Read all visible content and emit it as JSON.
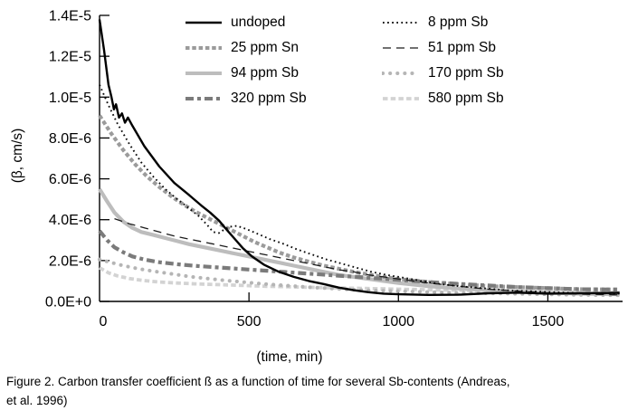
{
  "figure": {
    "caption_line1": "Figure 2. Carbon transfer coefficient ß as a function of time for several Sb-contents (Andreas,",
    "caption_line2": "et al. 1996)"
  },
  "chart_data": {
    "type": "line",
    "title": "",
    "xlabel": "(time, min)",
    "ylabel": "(β, cm/s)",
    "xlim": [
      0,
      1750
    ],
    "ylim": [
      0,
      1.4e-05
    ],
    "grid": false,
    "legend_position": "top-inside-two-columns",
    "points_unit": "1e-6 cm/s",
    "x_ticks": [
      {
        "v": 0,
        "label": "0"
      },
      {
        "v": 500,
        "label": "500"
      },
      {
        "v": 1000,
        "label": "1000"
      },
      {
        "v": 1500,
        "label": "1500"
      }
    ],
    "y_ticks": [
      {
        "v": 0,
        "label": "0.0E+0"
      },
      {
        "v": 2,
        "label": "2.0E-6"
      },
      {
        "v": 4,
        "label": "4.0E-6"
      },
      {
        "v": 6,
        "label": "6.0E-6"
      },
      {
        "v": 8,
        "label": "8.0E-6"
      },
      {
        "v": 10,
        "label": "1.0E-5"
      },
      {
        "v": 12,
        "label": "1.2E-5"
      },
      {
        "v": 14,
        "label": "1.4E-5"
      }
    ],
    "series": [
      {
        "name": "undoped",
        "slug": "undoped",
        "color": "#000000",
        "width": 2.4,
        "dash": "",
        "cap": "",
        "z": 8,
        "points": [
          [
            0,
            13.8
          ],
          [
            15,
            12.3
          ],
          [
            30,
            10.6
          ],
          [
            40,
            10.0
          ],
          [
            48,
            9.4
          ],
          [
            55,
            9.65
          ],
          [
            65,
            9.0
          ],
          [
            75,
            9.2
          ],
          [
            85,
            8.75
          ],
          [
            95,
            9.0
          ],
          [
            110,
            8.6
          ],
          [
            150,
            7.6
          ],
          [
            200,
            6.6
          ],
          [
            250,
            5.8
          ],
          [
            300,
            5.2
          ],
          [
            340,
            4.7
          ],
          [
            370,
            4.35
          ],
          [
            400,
            3.95
          ],
          [
            420,
            3.6
          ],
          [
            450,
            3.1
          ],
          [
            480,
            2.6
          ],
          [
            510,
            2.2
          ],
          [
            550,
            1.8
          ],
          [
            600,
            1.45
          ],
          [
            650,
            1.2
          ],
          [
            700,
            1.0
          ],
          [
            750,
            0.85
          ],
          [
            800,
            0.68
          ],
          [
            850,
            0.55
          ],
          [
            900,
            0.45
          ],
          [
            950,
            0.38
          ],
          [
            1000,
            0.35
          ],
          [
            1100,
            0.32
          ],
          [
            1200,
            0.33
          ],
          [
            1300,
            0.4
          ],
          [
            1400,
            0.43
          ],
          [
            1500,
            0.38
          ],
          [
            1600,
            0.4
          ],
          [
            1740,
            0.42
          ]
        ]
      },
      {
        "name": "8 ppm Sb",
        "slug": "8-ppm-sb",
        "color": "#0a0a0a",
        "width": 1.9,
        "dash": "1.7 3.4",
        "cap": "",
        "z": 7,
        "points": [
          [
            0,
            10.6
          ],
          [
            30,
            9.6
          ],
          [
            60,
            8.7
          ],
          [
            100,
            7.7
          ],
          [
            140,
            6.8
          ],
          [
            180,
            6.1
          ],
          [
            220,
            5.5
          ],
          [
            260,
            5.0
          ],
          [
            300,
            4.55
          ],
          [
            330,
            4.2
          ],
          [
            360,
            3.75
          ],
          [
            380,
            3.4
          ],
          [
            400,
            3.35
          ],
          [
            415,
            3.5
          ],
          [
            435,
            3.65
          ],
          [
            460,
            3.7
          ],
          [
            490,
            3.55
          ],
          [
            530,
            3.3
          ],
          [
            570,
            3.05
          ],
          [
            610,
            2.85
          ],
          [
            660,
            2.55
          ],
          [
            710,
            2.3
          ],
          [
            760,
            2.05
          ],
          [
            810,
            1.85
          ],
          [
            860,
            1.65
          ],
          [
            910,
            1.45
          ],
          [
            960,
            1.3
          ],
          [
            1020,
            1.15
          ],
          [
            1080,
            1.0
          ],
          [
            1140,
            0.85
          ],
          [
            1200,
            0.75
          ],
          [
            1280,
            0.65
          ],
          [
            1360,
            0.55
          ],
          [
            1440,
            0.5
          ],
          [
            1520,
            0.45
          ],
          [
            1620,
            0.4
          ],
          [
            1740,
            0.38
          ]
        ]
      },
      {
        "name": "25 ppm Sn",
        "slug": "25-ppm-sn",
        "color": "#9b9b9b",
        "width": 4.2,
        "dash": "4.5 2.8",
        "cap": "",
        "z": 4,
        "points": [
          [
            0,
            9.1
          ],
          [
            40,
            8.2
          ],
          [
            80,
            7.4
          ],
          [
            120,
            6.7
          ],
          [
            160,
            6.1
          ],
          [
            200,
            5.6
          ],
          [
            240,
            5.15
          ],
          [
            280,
            4.75
          ],
          [
            320,
            4.4
          ],
          [
            360,
            4.1
          ],
          [
            400,
            3.8
          ],
          [
            440,
            3.5
          ],
          [
            480,
            3.2
          ],
          [
            520,
            2.9
          ],
          [
            560,
            2.65
          ],
          [
            600,
            2.4
          ],
          [
            650,
            2.15
          ],
          [
            700,
            1.95
          ],
          [
            750,
            1.75
          ],
          [
            800,
            1.6
          ],
          [
            850,
            1.45
          ],
          [
            900,
            1.32
          ],
          [
            950,
            1.2
          ],
          [
            1000,
            1.1
          ],
          [
            1100,
            0.95
          ],
          [
            1200,
            0.85
          ],
          [
            1300,
            0.75
          ],
          [
            1400,
            0.7
          ],
          [
            1500,
            0.65
          ],
          [
            1600,
            0.6
          ],
          [
            1740,
            0.58
          ]
        ]
      },
      {
        "name": "51 ppm Sb",
        "slug": "51-ppm-sb",
        "color": "#1c1c1c",
        "width": 1.3,
        "dash": "9 6",
        "cap": "",
        "z": 6,
        "points": [
          [
            50,
            4.05
          ],
          [
            100,
            3.8
          ],
          [
            150,
            3.6
          ],
          [
            200,
            3.4
          ],
          [
            250,
            3.2
          ],
          [
            300,
            3.05
          ],
          [
            350,
            2.9
          ],
          [
            400,
            2.75
          ],
          [
            450,
            2.6
          ],
          [
            500,
            2.45
          ],
          [
            550,
            2.3
          ],
          [
            600,
            2.15
          ],
          [
            650,
            2.0
          ],
          [
            700,
            1.85
          ],
          [
            750,
            1.7
          ],
          [
            800,
            1.55
          ],
          [
            850,
            1.45
          ],
          [
            900,
            1.3
          ],
          [
            950,
            1.2
          ],
          [
            1000,
            1.1
          ],
          [
            1100,
            0.9
          ],
          [
            1200,
            0.75
          ],
          [
            1300,
            0.6
          ],
          [
            1400,
            0.5
          ],
          [
            1500,
            0.42
          ],
          [
            1600,
            0.36
          ],
          [
            1740,
            0.32
          ]
        ]
      },
      {
        "name": "94 ppm Sb",
        "slug": "94-ppm-sb",
        "color": "#bdbdbd",
        "width": 4.2,
        "dash": "",
        "cap": "",
        "z": 3,
        "points": [
          [
            0,
            5.5
          ],
          [
            25,
            4.9
          ],
          [
            50,
            4.35
          ],
          [
            80,
            3.9
          ],
          [
            110,
            3.6
          ],
          [
            140,
            3.4
          ],
          [
            180,
            3.25
          ],
          [
            220,
            3.1
          ],
          [
            260,
            2.95
          ],
          [
            300,
            2.8
          ],
          [
            350,
            2.65
          ],
          [
            400,
            2.5
          ],
          [
            450,
            2.35
          ],
          [
            500,
            2.2
          ],
          [
            550,
            2.05
          ],
          [
            600,
            1.9
          ],
          [
            650,
            1.75
          ],
          [
            700,
            1.6
          ],
          [
            750,
            1.45
          ],
          [
            800,
            1.3
          ],
          [
            850,
            1.2
          ],
          [
            900,
            1.1
          ],
          [
            950,
            1.0
          ],
          [
            1000,
            0.9
          ],
          [
            1100,
            0.75
          ],
          [
            1200,
            0.63
          ],
          [
            1300,
            0.55
          ],
          [
            1400,
            0.48
          ],
          [
            1500,
            0.43
          ],
          [
            1600,
            0.38
          ],
          [
            1740,
            0.35
          ]
        ]
      },
      {
        "name": "170 ppm Sb",
        "slug": "170-ppm-sb",
        "color": "#b5b5b5",
        "width": 4,
        "dash": "0.1 8",
        "cap": "round",
        "z": 2,
        "points": [
          [
            0,
            2.05
          ],
          [
            40,
            1.9
          ],
          [
            80,
            1.75
          ],
          [
            130,
            1.6
          ],
          [
            180,
            1.48
          ],
          [
            240,
            1.35
          ],
          [
            300,
            1.22
          ],
          [
            360,
            1.12
          ],
          [
            420,
            1.03
          ],
          [
            480,
            0.95
          ],
          [
            540,
            0.87
          ],
          [
            600,
            0.8
          ],
          [
            660,
            0.74
          ],
          [
            720,
            0.68
          ],
          [
            780,
            0.63
          ],
          [
            840,
            0.58
          ],
          [
            900,
            0.54
          ],
          [
            1000,
            0.5
          ],
          [
            1100,
            0.46
          ],
          [
            1200,
            0.42
          ],
          [
            1300,
            0.4
          ],
          [
            1400,
            0.37
          ],
          [
            1500,
            0.35
          ],
          [
            1600,
            0.32
          ],
          [
            1740,
            0.3
          ]
        ]
      },
      {
        "name": "320 ppm Sb",
        "slug": "320-ppm-sb",
        "color": "#7b7b7b",
        "width": 4.2,
        "dash": "9 4 4 4",
        "cap": "",
        "z": 5,
        "points": [
          [
            0,
            3.45
          ],
          [
            25,
            3.0
          ],
          [
            50,
            2.65
          ],
          [
            80,
            2.4
          ],
          [
            110,
            2.2
          ],
          [
            150,
            2.05
          ],
          [
            200,
            1.92
          ],
          [
            260,
            1.82
          ],
          [
            320,
            1.74
          ],
          [
            380,
            1.68
          ],
          [
            440,
            1.62
          ],
          [
            500,
            1.56
          ],
          [
            560,
            1.5
          ],
          [
            620,
            1.44
          ],
          [
            680,
            1.38
          ],
          [
            740,
            1.32
          ],
          [
            800,
            1.26
          ],
          [
            860,
            1.2
          ],
          [
            920,
            1.14
          ],
          [
            980,
            1.08
          ],
          [
            1050,
            1.0
          ],
          [
            1120,
            0.93
          ],
          [
            1200,
            0.86
          ],
          [
            1300,
            0.78
          ],
          [
            1400,
            0.7
          ],
          [
            1500,
            0.65
          ],
          [
            1600,
            0.6
          ],
          [
            1740,
            0.58
          ]
        ]
      },
      {
        "name": "580 ppm Sb",
        "slug": "580-ppm-sb",
        "color": "#d3d3d3",
        "width": 3.8,
        "dash": "5.5 3.2",
        "cap": "",
        "z": 1,
        "points": [
          [
            0,
            1.65
          ],
          [
            30,
            1.4
          ],
          [
            60,
            1.25
          ],
          [
            100,
            1.12
          ],
          [
            150,
            1.02
          ],
          [
            200,
            0.95
          ],
          [
            260,
            0.9
          ],
          [
            320,
            0.86
          ],
          [
            380,
            0.83
          ],
          [
            440,
            0.8
          ],
          [
            500,
            0.77
          ],
          [
            560,
            0.74
          ],
          [
            620,
            0.72
          ],
          [
            700,
            0.69
          ],
          [
            800,
            0.66
          ],
          [
            900,
            0.63
          ],
          [
            1000,
            0.6
          ],
          [
            1100,
            0.57
          ],
          [
            1200,
            0.55
          ],
          [
            1300,
            0.52
          ],
          [
            1400,
            0.5
          ],
          [
            1500,
            0.48
          ],
          [
            1600,
            0.46
          ],
          [
            1740,
            0.44
          ]
        ]
      }
    ]
  }
}
